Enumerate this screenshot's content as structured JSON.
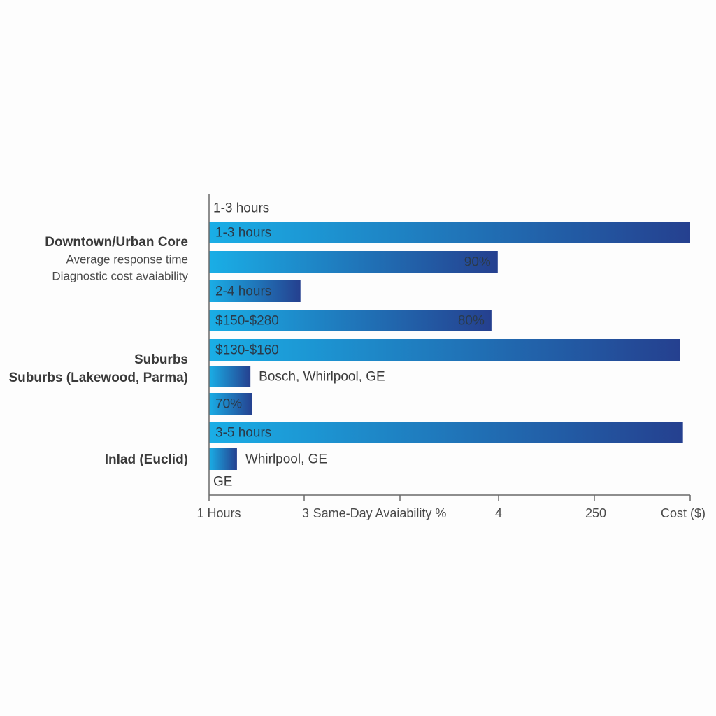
{
  "chart_data": {
    "type": "bar",
    "orientation": "horizontal",
    "x_ticks": [
      "1 Hours",
      "3",
      "Same-Day Avaiability %",
      "4",
      "250",
      "Cost ($)"
    ],
    "groups": [
      {
        "title": "Downtown/Urban Core",
        "sublabels": [
          "Average response time",
          "Diagnostic cost avaiability"
        ],
        "rows": [
          {
            "value": 0,
            "label": "1-3 hours",
            "label_pos": "start"
          },
          {
            "value": 1.0,
            "label": "1-3 hours",
            "label_pos": "start"
          },
          {
            "value": 0.6,
            "label": "90%",
            "label_pos": "end"
          },
          {
            "value": 0.19,
            "label": "2-4 hours",
            "label_pos": "start"
          },
          {
            "value": 0.587,
            "label": "$150-$280",
            "label_pos": "start",
            "label2": "80%"
          }
        ]
      },
      {
        "title": "Suburbs",
        "sublabels": [
          "Suburbs (Lakewood, Parma)"
        ],
        "rows": [
          {
            "value": 0.979,
            "label": "$130-$160",
            "label_pos": "start"
          },
          {
            "value": 0.086,
            "label": "Bosch, Whirlpool, GE",
            "label_pos": "after"
          },
          {
            "value": 0.09,
            "label": "70%",
            "label_pos": "start"
          }
        ]
      },
      {
        "title": "Inlad (Euclid)",
        "sublabels": [],
        "rows": [
          {
            "value": 0.985,
            "label": "3-5 hours",
            "label_pos": "start"
          },
          {
            "value": 0.058,
            "label": "Whirlpool, GE",
            "label_pos": "after"
          },
          {
            "value": 0,
            "label": "GE",
            "label_pos": "start"
          }
        ]
      }
    ],
    "colors": {
      "bar_start": "#1aaee6",
      "bar_end": "#25408f",
      "text": "#3a3a3a",
      "axis": "#6a6a6a"
    }
  }
}
